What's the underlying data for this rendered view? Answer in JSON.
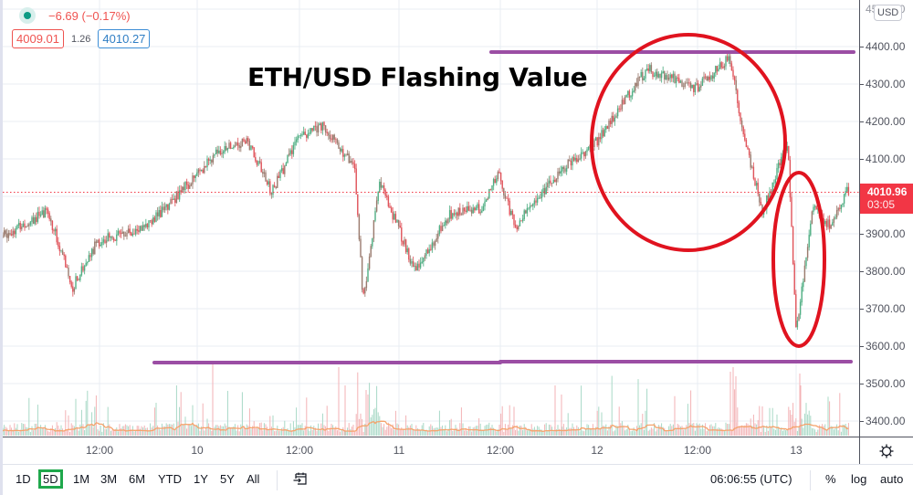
{
  "legend": {
    "status_dot_color": "#0c9b84",
    "change": "−6.69 (−0.17%)",
    "bid": "4009.01",
    "spread": "1.26",
    "ask": "4010.27"
  },
  "annotation": {
    "title": "ETH/USD Flashing Value",
    "resistance_line_color": "#9b4ea4",
    "ellipse_color": "#e0131f"
  },
  "price_axis": {
    "currency": "USD",
    "labels": [
      "4500.00",
      "4400.00",
      "4300.00",
      "4200.00",
      "4100.00",
      "3900.00",
      "3800.00",
      "3700.00",
      "3600.00",
      "3500.00",
      "3400.00"
    ],
    "last_price": "4010.96",
    "countdown": "03:05",
    "last_price_color": "#f23645"
  },
  "time_axis": {
    "labels": [
      "12:00",
      "10",
      "12:00",
      "11",
      "12:00",
      "12",
      "12:00",
      "13"
    ],
    "settings_icon": "gear-icon"
  },
  "toolbar": {
    "ranges": [
      "1D",
      "5D",
      "1M",
      "3M",
      "6M",
      "YTD",
      "1Y",
      "5Y",
      "All"
    ],
    "active_range": "5D",
    "goto_date_icon": "calendar-goto-icon",
    "clock": "06:06:55 (UTC)",
    "percent": "%",
    "log": "log",
    "auto": "auto"
  },
  "chart_data": {
    "type": "candlestick",
    "symbol": "ETH/USD",
    "title": "ETH/USD Flashing Value",
    "ylabel": "USD",
    "ylim": [
      3330,
      4520
    ],
    "x_ticks": [
      "12:00",
      "10",
      "12:00",
      "11",
      "12:00",
      "12",
      "12:00",
      "13"
    ],
    "y_ticks": [
      3400,
      3500,
      3600,
      3700,
      3800,
      3900,
      4000,
      4100,
      4200,
      4300,
      4400,
      4500
    ],
    "grid": true,
    "approx_close_path": [
      {
        "x": "09 00:00",
        "price": 3890
      },
      {
        "x": "09 06:00",
        "price": 3960
      },
      {
        "x": "09 09:00",
        "price": 3760
      },
      {
        "x": "09 12:00",
        "price": 3880
      },
      {
        "x": "09 18:00",
        "price": 3920
      },
      {
        "x": "10 03:00",
        "price": 4130
      },
      {
        "x": "10 06:00",
        "price": 4150
      },
      {
        "x": "10 09:00",
        "price": 4010
      },
      {
        "x": "10 12:00",
        "price": 4150
      },
      {
        "x": "10 15:00",
        "price": 4190
      },
      {
        "x": "10 19:00",
        "price": 4080
      },
      {
        "x": "10 20:00",
        "price": 3720
      },
      {
        "x": "10 22:00",
        "price": 4040
      },
      {
        "x": "11 02:00",
        "price": 3800
      },
      {
        "x": "11 06:00",
        "price": 3950
      },
      {
        "x": "11 10:00",
        "price": 3970
      },
      {
        "x": "11 12:00",
        "price": 4060
      },
      {
        "x": "11 14:00",
        "price": 3920
      },
      {
        "x": "11 20:00",
        "price": 4080
      },
      {
        "x": "12 00:00",
        "price": 4150
      },
      {
        "x": "12 06:00",
        "price": 4340
      },
      {
        "x": "12 12:00",
        "price": 4290
      },
      {
        "x": "12 16:00",
        "price": 4370
      },
      {
        "x": "12 18:00",
        "price": 4130
      },
      {
        "x": "12 20:00",
        "price": 3960
      },
      {
        "x": "12 23:00",
        "price": 4150
      },
      {
        "x": "13 00:00",
        "price": 3640
      },
      {
        "x": "13 02:00",
        "price": 3980
      },
      {
        "x": "13 04:00",
        "price": 3920
      },
      {
        "x": "13 06:00",
        "price": 4011
      }
    ],
    "horizontal_lines": [
      {
        "price": 4385,
        "label": "resistance",
        "color": "#9b4ea4"
      },
      {
        "price": 3560,
        "label": "support",
        "color": "#9b4ea4"
      }
    ],
    "volume_ma_color": "#f5a36c",
    "up_color": "#26a69a",
    "down_color": "#ef5350"
  }
}
